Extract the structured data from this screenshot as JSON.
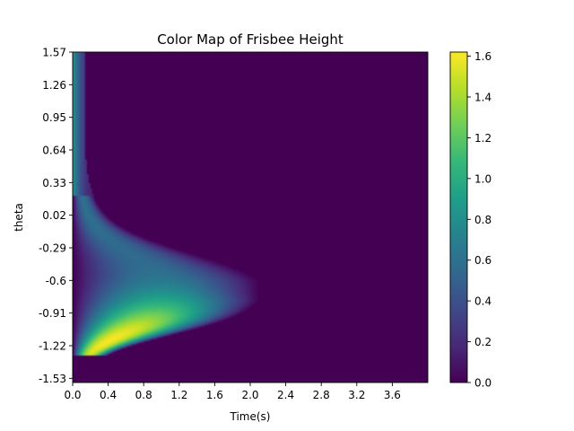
{
  "chart_data": {
    "type": "heatmap",
    "title": "Color Map of Frisbee Height",
    "xlabel": "Time(s)",
    "ylabel": "theta",
    "xlim": [
      0.0,
      4.0
    ],
    "ylim": [
      -1.57,
      1.57
    ],
    "x_ticks": [
      0.0,
      0.4,
      0.8,
      1.2,
      1.6,
      2.0,
      2.4,
      2.8,
      3.2,
      3.6
    ],
    "x_tick_labels": [
      "0.0",
      "0.4",
      "0.8",
      "1.2",
      "1.6",
      "2.0",
      "2.4",
      "2.8",
      "3.2",
      "3.6"
    ],
    "y_ticks": [
      1.57,
      1.26,
      0.95,
      0.64,
      0.33,
      0.02,
      -0.29,
      -0.6,
      -0.91,
      -1.22,
      -1.53
    ],
    "y_tick_labels": [
      "1.57",
      "1.26",
      "0.95",
      "0.64",
      "0.33",
      "0.02",
      "-0.29",
      "-0.6",
      "-0.91",
      "-1.22",
      "-1.53"
    ],
    "colorbar": {
      "colormap": "viridis",
      "range": [
        0.0,
        1.62
      ],
      "ticks": [
        0.0,
        0.2,
        0.4,
        0.6,
        0.8,
        1.0,
        1.2,
        1.4,
        1.6
      ],
      "tick_labels": [
        "0.0",
        "0.2",
        "0.4",
        "0.6",
        "0.8",
        "1.0",
        "1.2",
        "1.4",
        "1.6"
      ]
    },
    "color_stops": [
      "#440154",
      "#482878",
      "#3e4a89",
      "#31688e",
      "#26828e",
      "#1f9e89",
      "#35b779",
      "#6ece58",
      "#b5de2b",
      "#fde725"
    ],
    "field_summary": {
      "peak_value": 1.62,
      "peak_time": 0.82,
      "peak_theta": -1.2,
      "cutoff_theta": -1.32,
      "value_below_cutoff": 0.0,
      "max_flight_time": 2.1
    }
  }
}
